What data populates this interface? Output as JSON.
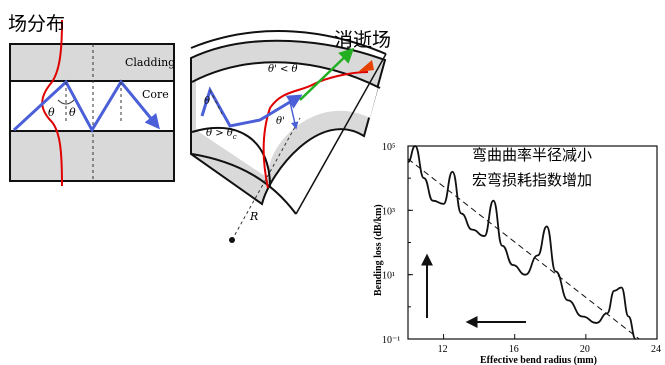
{
  "colors": {
    "cladding": "#d9d9d9",
    "core": "#ffffff",
    "outline": "#111111",
    "ray": "#4a5fd8",
    "field": "#e00000",
    "evanescent": "#22b022",
    "annotation": "#000000"
  },
  "left_panel": {
    "field_label": "场分布",
    "cladding_label": "Cladding",
    "core_label": "Core",
    "theta_label_1": "θ",
    "theta_label_2": "θ"
  },
  "bend_panel": {
    "evanescent_label": "消逝场",
    "theta_prime_lt": "θ' < θ",
    "theta_gt_c": "θ > θ",
    "theta_gt_c_sub": "c",
    "theta_small": "θ",
    "theta_prime_small": "θ'",
    "radius_label": "R"
  },
  "annotation": {
    "line1": "弯曲曲率半径减小",
    "line2": "宏弯损耗指数增加"
  },
  "chart_data": {
    "type": "line",
    "xlabel": "Effective bend radius (mm)",
    "ylabel": "Bending loss (dB/km)",
    "xlim": [
      10,
      24
    ],
    "ylim_log10": [
      -1,
      5
    ],
    "x_ticks": [
      "12",
      "16",
      "20",
      "24"
    ],
    "y_ticks": [
      "10⁵",
      "10³",
      "10¹",
      "10⁻¹"
    ],
    "series": [
      {
        "style": "solid",
        "x": [
          10.0,
          10.4,
          10.9,
          11.4,
          12.0,
          12.5,
          13.0,
          13.6,
          14.3,
          14.8,
          15.3,
          15.9,
          16.6,
          17.3,
          17.8,
          18.3,
          19.0,
          19.8,
          20.6,
          21.2,
          21.6,
          22.0,
          22.4,
          22.8
        ],
        "log10_y": [
          4.5,
          5.0,
          4.0,
          3.3,
          3.2,
          4.2,
          2.9,
          2.4,
          2.2,
          3.3,
          1.9,
          1.3,
          1.0,
          1.6,
          2.5,
          1.1,
          0.2,
          -0.3,
          -0.5,
          -0.2,
          0.5,
          0.6,
          -0.3,
          -1.0
        ]
      },
      {
        "style": "dashed",
        "x": [
          10.0,
          23.0
        ],
        "log10_y": [
          4.6,
          -1.0
        ]
      }
    ],
    "arrows": [
      "up (vertical, left side)",
      "left (horizontal, bottom)"
    ]
  }
}
